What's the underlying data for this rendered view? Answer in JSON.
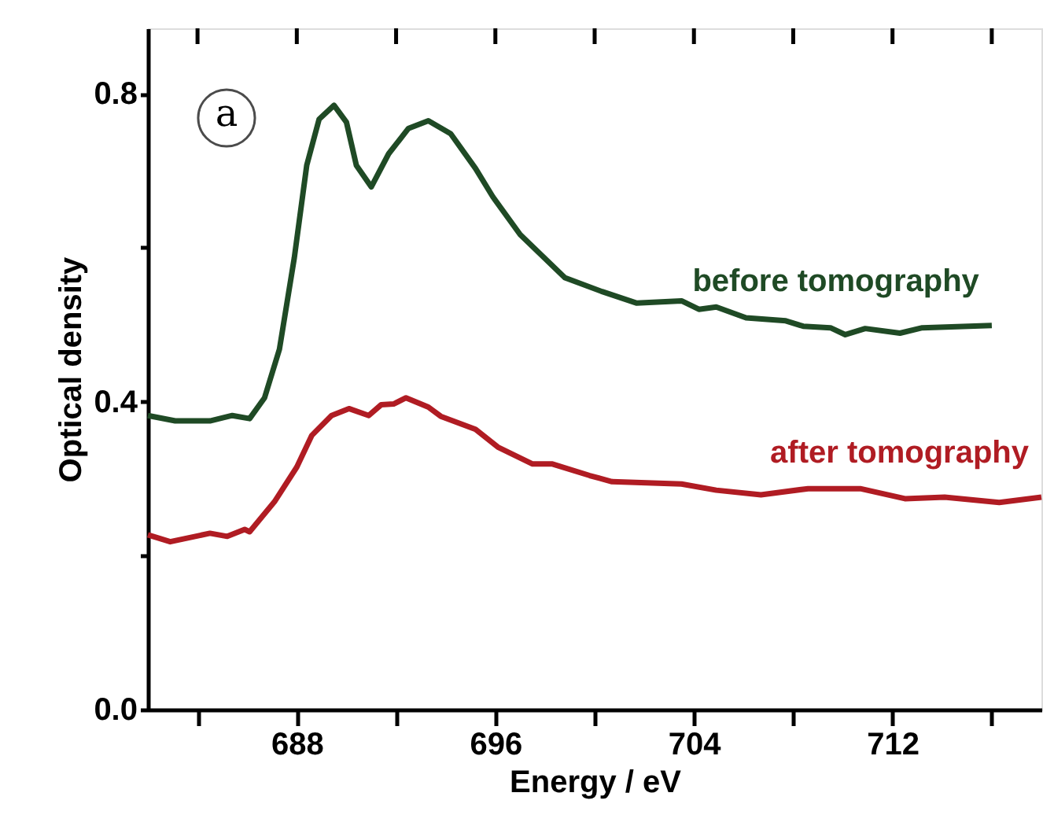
{
  "chart_data": {
    "type": "line",
    "xlabel": "Energy / eV",
    "ylabel": "Optical density",
    "annotations": [
      "a"
    ],
    "xlim": [
      682,
      718
    ],
    "ylim": [
      0,
      0.885
    ],
    "xticks": [
      {
        "value": 684,
        "label": null
      },
      688,
      {
        "value": 692,
        "label": null
      },
      696,
      {
        "value": 700,
        "label": null
      },
      704,
      {
        "value": 708,
        "label": null
      },
      712,
      {
        "value": 716,
        "label": null
      }
    ],
    "yticks": [
      {
        "value": 0,
        "label": "0.0"
      },
      {
        "value": 0.2,
        "label": null
      },
      0.4,
      {
        "value": 0.6,
        "label": null
      },
      0.8
    ],
    "grid": false,
    "marker": "none",
    "line_style": "solid",
    "series": [
      {
        "name": "before tomography",
        "color": "#1f4a25",
        "x": [
          682,
          683.1,
          684.5,
          685.4,
          686.1,
          686.7,
          687.3,
          687.9,
          688.4,
          688.9,
          689.5,
          690.0,
          690.4,
          691.0,
          691.7,
          692.5,
          693.3,
          694.2,
          695.2,
          695.9,
          697.0,
          698.8,
          700.3,
          701.7,
          703.5,
          704.2,
          704.9,
          706.1,
          707.7,
          708.4,
          709.5,
          710.1,
          710.9,
          712.3,
          713.2,
          716.0
        ],
        "values": [
          0.382,
          0.375,
          0.375,
          0.382,
          0.378,
          0.405,
          0.468,
          0.587,
          0.707,
          0.767,
          0.785,
          0.763,
          0.707,
          0.679,
          0.722,
          0.755,
          0.765,
          0.748,
          0.703,
          0.666,
          0.617,
          0.561,
          0.543,
          0.528,
          0.531,
          0.52,
          0.523,
          0.509,
          0.505,
          0.498,
          0.496,
          0.487,
          0.495,
          0.489,
          0.496,
          0.499
        ]
      },
      {
        "name": "after  tomography",
        "color": "#b01c23",
        "x": [
          682,
          682.9,
          684.5,
          685.2,
          685.9,
          686.1,
          687.1,
          688.0,
          688.6,
          689.4,
          690.1,
          690.9,
          691.4,
          691.9,
          692.4,
          693.3,
          693.8,
          695.2,
          696.1,
          697.5,
          698.3,
          699.8,
          700.7,
          703.5,
          704.9,
          706.7,
          708.6,
          710.7,
          712.5,
          714.1,
          716.3,
          718.0
        ],
        "values": [
          0.227,
          0.218,
          0.229,
          0.225,
          0.234,
          0.231,
          0.27,
          0.315,
          0.356,
          0.382,
          0.391,
          0.382,
          0.396,
          0.397,
          0.405,
          0.393,
          0.381,
          0.364,
          0.341,
          0.319,
          0.319,
          0.304,
          0.296,
          0.293,
          0.285,
          0.279,
          0.287,
          0.287,
          0.274,
          0.276,
          0.269,
          0.276
        ]
      }
    ]
  }
}
